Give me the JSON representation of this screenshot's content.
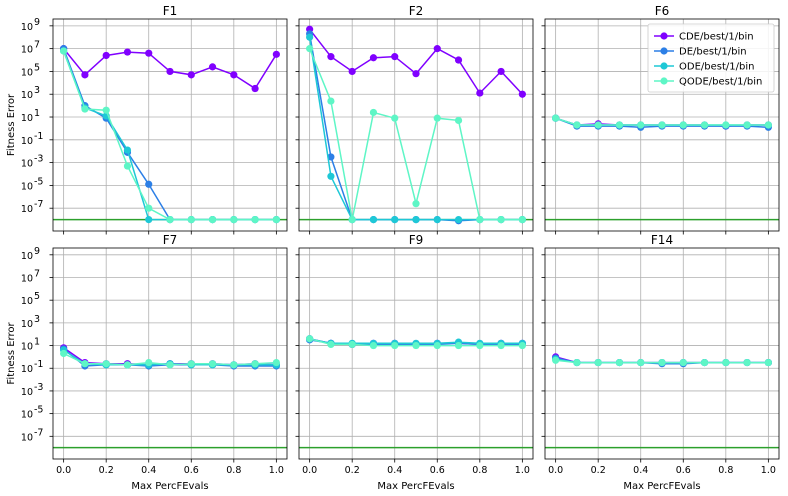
{
  "chart_data": {
    "type": "line",
    "shared": {
      "x_ticks": [
        0.0,
        0.2,
        0.4,
        0.6,
        0.8,
        1.0
      ],
      "x_tick_labels": [
        "0.0",
        "0.2",
        "0.4",
        "0.6",
        "0.8",
        "1.0"
      ],
      "y_log_scale": true,
      "y_ticks_exp": [
        -7,
        -5,
        -3,
        -1,
        1,
        3,
        5,
        7,
        9
      ],
      "y_tick_labels": [
        "10",
        "10",
        "10",
        "10",
        "10",
        "10",
        "10",
        "10",
        "10"
      ],
      "y_tick_exponents": [
        "-7",
        "-5",
        "-3",
        "-1",
        "1",
        "3",
        "5",
        "7",
        "9"
      ],
      "ylim_exp": [
        -9,
        9.6
      ],
      "xlim": [
        -0.05,
        1.05
      ],
      "xlabel": "Max PercFEvals",
      "ylabel": "Fitness Error",
      "reference_line_exp": -8,
      "reference_line_color": "#2ca02c",
      "grid": true,
      "legend": {
        "placement": "top-right",
        "panel": "F6",
        "entries": [
          "CDE/best/1/bin",
          "DE/best/1/bin",
          "ODE/best/1/bin",
          "QODE/best/1/bin"
        ]
      },
      "colors": [
        "#8000ff",
        "#2c7fe6",
        "#1ec8d6",
        "#5ef6c6"
      ],
      "x": [
        0.0,
        0.1,
        0.2,
        0.3,
        0.4,
        0.5,
        0.6,
        0.7,
        0.8,
        0.9,
        1.0
      ]
    },
    "panels": [
      {
        "title": "F1",
        "series": [
          {
            "name": "CDE/best/1/bin",
            "y_exp": [
              7.0,
              4.7,
              6.4,
              6.7,
              6.6,
              5.0,
              4.7,
              5.4,
              4.7,
              3.5,
              6.5
            ]
          },
          {
            "name": "DE/best/1/bin",
            "y_exp": [
              7.0,
              2.0,
              0.9,
              -2.1,
              -4.9,
              -8.0,
              -8.0,
              -8.0,
              -8.0,
              -8.0,
              -8.0
            ]
          },
          {
            "name": "ODE/best/1/bin",
            "y_exp": [
              6.8,
              1.8,
              1.1,
              -1.9,
              -8.0,
              -8.0,
              -8.0,
              -8.0,
              -8.0,
              -8.0,
              -8.0
            ]
          },
          {
            "name": "QODE/best/1/bin",
            "y_exp": [
              6.8,
              1.7,
              1.6,
              -3.3,
              -7.0,
              -8.0,
              -8.0,
              -8.0,
              -8.0,
              -8.0,
              -8.0
            ]
          }
        ]
      },
      {
        "title": "F2",
        "series": [
          {
            "name": "CDE/best/1/bin",
            "y_exp": [
              8.7,
              6.3,
              5.0,
              6.2,
              6.3,
              4.8,
              7.0,
              6.0,
              3.1,
              5.0,
              3.0
            ]
          },
          {
            "name": "DE/best/1/bin",
            "y_exp": [
              8.3,
              -2.5,
              -8.0,
              -8.0,
              -8.0,
              -8.0,
              -8.0,
              -8.1,
              -8.0,
              -8.0,
              -8.0
            ]
          },
          {
            "name": "ODE/best/1/bin",
            "y_exp": [
              8.0,
              -4.2,
              -8.0,
              -8.0,
              -8.0,
              -8.0,
              -8.0,
              -8.0,
              -8.0,
              -8.0,
              -8.0
            ]
          },
          {
            "name": "QODE/best/1/bin",
            "y_exp": [
              7.0,
              2.4,
              -8.0,
              1.4,
              0.9,
              -6.6,
              0.9,
              0.7,
              -8.0,
              -8.0,
              -8.0
            ]
          }
        ]
      },
      {
        "title": "F6",
        "series": [
          {
            "name": "CDE/best/1/bin",
            "y_exp": [
              0.9,
              0.3,
              0.4,
              0.3,
              0.3,
              0.3,
              0.3,
              0.3,
              0.2,
              0.3,
              0.3
            ]
          },
          {
            "name": "DE/best/1/bin",
            "y_exp": [
              0.9,
              0.2,
              0.2,
              0.2,
              0.1,
              0.2,
              0.2,
              0.2,
              0.2,
              0.2,
              0.1
            ]
          },
          {
            "name": "ODE/best/1/bin",
            "y_exp": [
              0.9,
              0.3,
              0.3,
              0.3,
              0.3,
              0.3,
              0.3,
              0.3,
              0.3,
              0.3,
              0.3
            ]
          },
          {
            "name": "QODE/best/1/bin",
            "y_exp": [
              0.9,
              0.3,
              0.3,
              0.3,
              0.3,
              0.3,
              0.3,
              0.3,
              0.3,
              0.3,
              0.3
            ]
          }
        ]
      },
      {
        "title": "F7",
        "series": [
          {
            "name": "CDE/best/1/bin",
            "y_exp": [
              0.8,
              -0.5,
              -0.6,
              -0.6,
              -0.7,
              -0.6,
              -0.6,
              -0.6,
              -0.7,
              -0.6,
              -0.7
            ]
          },
          {
            "name": "DE/best/1/bin",
            "y_exp": [
              0.7,
              -0.8,
              -0.7,
              -0.7,
              -0.8,
              -0.7,
              -0.7,
              -0.7,
              -0.8,
              -0.8,
              -0.8
            ]
          },
          {
            "name": "ODE/best/1/bin",
            "y_exp": [
              0.6,
              -0.6,
              -0.7,
              -0.7,
              -0.7,
              -0.6,
              -0.7,
              -0.7,
              -0.7,
              -0.7,
              -0.7
            ]
          },
          {
            "name": "QODE/best/1/bin",
            "y_exp": [
              0.3,
              -0.6,
              -0.6,
              -0.7,
              -0.5,
              -0.7,
              -0.6,
              -0.6,
              -0.7,
              -0.6,
              -0.5
            ]
          }
        ]
      },
      {
        "title": "F9",
        "series": [
          {
            "name": "CDE/best/1/bin",
            "y_exp": [
              1.6,
              1.2,
              1.1,
              1.2,
              1.2,
              1.1,
              1.2,
              1.2,
              1.1,
              1.2,
              1.2
            ]
          },
          {
            "name": "DE/best/1/bin",
            "y_exp": [
              1.5,
              1.2,
              1.1,
              1.1,
              1.1,
              1.1,
              1.1,
              1.2,
              1.1,
              1.1,
              1.1
            ]
          },
          {
            "name": "ODE/best/1/bin",
            "y_exp": [
              1.6,
              1.2,
              1.2,
              1.2,
              1.2,
              1.2,
              1.2,
              1.3,
              1.2,
              1.2,
              1.2
            ]
          },
          {
            "name": "QODE/best/1/bin",
            "y_exp": [
              1.6,
              1.1,
              1.1,
              1.0,
              1.0,
              1.0,
              1.0,
              1.0,
              1.0,
              1.0,
              1.0
            ]
          }
        ]
      },
      {
        "title": "F14",
        "series": [
          {
            "name": "CDE/best/1/bin",
            "y_exp": [
              0.0,
              -0.5,
              -0.5,
              -0.5,
              -0.5,
              -0.5,
              -0.5,
              -0.5,
              -0.5,
              -0.5,
              -0.5
            ]
          },
          {
            "name": "DE/best/1/bin",
            "y_exp": [
              -0.1,
              -0.5,
              -0.5,
              -0.5,
              -0.5,
              -0.6,
              -0.6,
              -0.5,
              -0.5,
              -0.5,
              -0.5
            ]
          },
          {
            "name": "ODE/best/1/bin",
            "y_exp": [
              -0.2,
              -0.5,
              -0.5,
              -0.5,
              -0.5,
              -0.5,
              -0.5,
              -0.5,
              -0.5,
              -0.5,
              -0.5
            ]
          },
          {
            "name": "QODE/best/1/bin",
            "y_exp": [
              -0.3,
              -0.5,
              -0.5,
              -0.5,
              -0.5,
              -0.5,
              -0.5,
              -0.5,
              -0.5,
              -0.5,
              -0.5
            ]
          }
        ]
      }
    ]
  }
}
